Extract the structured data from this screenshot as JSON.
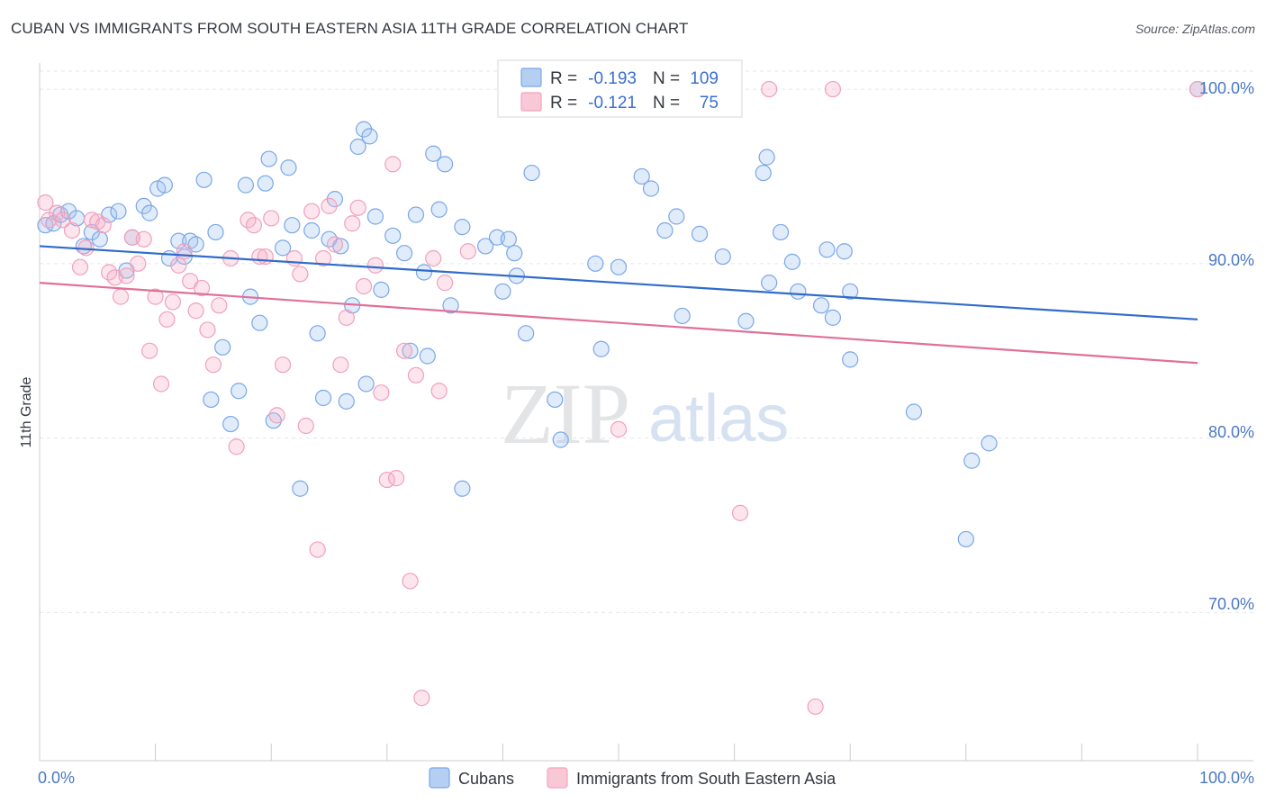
{
  "title": "CUBAN VS IMMIGRANTS FROM SOUTH EASTERN ASIA 11TH GRADE CORRELATION CHART",
  "source": "Source: ZipAtlas.com",
  "watermark": {
    "zip": "ZIP",
    "atlas": "atlas"
  },
  "legend": {
    "r_label": "R =",
    "n_label": "N =",
    "rows": [
      {
        "r": "-0.193",
        "n": "109"
      },
      {
        "r": "-0.121",
        "n": "75"
      }
    ]
  },
  "chart_data": {
    "type": "scatter",
    "ylabel": "11th Grade",
    "x_tick_labels": [
      "0.0%",
      "100.0%"
    ],
    "y_tick_labels": [
      "100.0%",
      "90.0%",
      "80.0%",
      "70.0%"
    ],
    "xlim": [
      0,
      100
    ],
    "ylim": [
      61.5,
      101.5
    ],
    "colors": {
      "Cubans": "#7aa6e8",
      "Immigrants from South Eastern Asia": "#f3a3bd",
      "blue_line": "#2f6cc9",
      "pink_line": "#e0709a"
    },
    "series": [
      {
        "name": "Cubans",
        "trend": {
          "x": [
            0,
            100
          ],
          "y": [
            91.0,
            86.8
          ]
        },
        "points": [
          [
            0.5,
            92.2
          ],
          [
            1.2,
            92.3
          ],
          [
            1.8,
            92.8
          ],
          [
            2.5,
            93.0
          ],
          [
            3.2,
            92.6
          ],
          [
            3.8,
            91.0
          ],
          [
            4.5,
            91.8
          ],
          [
            5.2,
            91.4
          ],
          [
            6.0,
            92.8
          ],
          [
            6.8,
            93.0
          ],
          [
            7.5,
            89.6
          ],
          [
            8.0,
            91.5
          ],
          [
            9.0,
            93.3
          ],
          [
            9.5,
            92.9
          ],
          [
            10.2,
            94.3
          ],
          [
            10.8,
            94.5
          ],
          [
            11.2,
            90.3
          ],
          [
            12.0,
            91.3
          ],
          [
            12.5,
            90.4
          ],
          [
            13.0,
            91.3
          ],
          [
            13.5,
            91.1
          ],
          [
            14.2,
            94.8
          ],
          [
            15.2,
            91.8
          ],
          [
            14.8,
            82.2
          ],
          [
            15.8,
            85.2
          ],
          [
            16.5,
            80.8
          ],
          [
            17.2,
            82.7
          ],
          [
            17.8,
            94.5
          ],
          [
            18.2,
            88.1
          ],
          [
            19.0,
            86.6
          ],
          [
            19.5,
            94.6
          ],
          [
            19.8,
            96.0
          ],
          [
            20.2,
            81.0
          ],
          [
            21.0,
            90.9
          ],
          [
            21.5,
            95.5
          ],
          [
            21.8,
            92.2
          ],
          [
            22.5,
            77.1
          ],
          [
            23.5,
            91.9
          ],
          [
            24.0,
            86.0
          ],
          [
            24.5,
            82.3
          ],
          [
            25.0,
            91.4
          ],
          [
            25.5,
            93.7
          ],
          [
            26.0,
            91.0
          ],
          [
            26.5,
            82.1
          ],
          [
            27.0,
            87.6
          ],
          [
            27.5,
            96.7
          ],
          [
            28.0,
            97.7
          ],
          [
            28.5,
            97.3
          ],
          [
            28.2,
            83.1
          ],
          [
            29.0,
            92.7
          ],
          [
            29.5,
            88.5
          ],
          [
            30.5,
            91.6
          ],
          [
            31.5,
            90.6
          ],
          [
            32.0,
            85.0
          ],
          [
            32.5,
            92.8
          ],
          [
            33.2,
            89.5
          ],
          [
            33.5,
            84.7
          ],
          [
            34.0,
            96.3
          ],
          [
            34.5,
            93.1
          ],
          [
            35.0,
            95.7
          ],
          [
            35.5,
            87.6
          ],
          [
            36.5,
            92.1
          ],
          [
            36.5,
            77.1
          ],
          [
            38.5,
            91.0
          ],
          [
            39.5,
            91.5
          ],
          [
            40.0,
            88.4
          ],
          [
            40.5,
            91.4
          ],
          [
            41.0,
            90.6
          ],
          [
            41.2,
            89.3
          ],
          [
            42.0,
            86.0
          ],
          [
            42.5,
            95.2
          ],
          [
            44.5,
            82.2
          ],
          [
            45.0,
            79.9
          ],
          [
            48.0,
            90.0
          ],
          [
            48.5,
            85.1
          ],
          [
            50.0,
            89.8
          ],
          [
            52.0,
            95.0
          ],
          [
            52.8,
            94.3
          ],
          [
            54.0,
            91.9
          ],
          [
            55.0,
            92.7
          ],
          [
            55.5,
            87.0
          ],
          [
            57.0,
            91.7
          ],
          [
            59.0,
            90.4
          ],
          [
            61.0,
            86.7
          ],
          [
            62.5,
            95.2
          ],
          [
            62.8,
            96.1
          ],
          [
            63.0,
            88.9
          ],
          [
            64.0,
            91.8
          ],
          [
            65.0,
            90.1
          ],
          [
            65.5,
            88.4
          ],
          [
            67.5,
            87.6
          ],
          [
            68.0,
            90.8
          ],
          [
            68.5,
            86.9
          ],
          [
            69.5,
            90.7
          ],
          [
            70.0,
            88.4
          ],
          [
            70.0,
            84.5
          ],
          [
            75.5,
            81.5
          ],
          [
            80.5,
            78.7
          ],
          [
            80.0,
            74.2
          ],
          [
            82.0,
            79.7
          ],
          [
            100.0,
            100.0
          ]
        ]
      },
      {
        "name": "Immigrants from South Eastern Asia",
        "trend": {
          "x": [
            0,
            100
          ],
          "y": [
            88.9,
            84.3
          ]
        },
        "points": [
          [
            0.5,
            93.5
          ],
          [
            0.8,
            92.5
          ],
          [
            1.5,
            92.9
          ],
          [
            2.0,
            92.5
          ],
          [
            2.8,
            91.9
          ],
          [
            3.5,
            89.8
          ],
          [
            4.0,
            90.9
          ],
          [
            4.5,
            92.5
          ],
          [
            5.0,
            92.4
          ],
          [
            5.5,
            92.2
          ],
          [
            6.0,
            89.5
          ],
          [
            6.5,
            89.2
          ],
          [
            7.0,
            88.1
          ],
          [
            7.5,
            89.3
          ],
          [
            8.0,
            91.5
          ],
          [
            8.5,
            90.0
          ],
          [
            9.0,
            91.4
          ],
          [
            9.5,
            85.0
          ],
          [
            10.0,
            88.1
          ],
          [
            10.5,
            83.1
          ],
          [
            11.0,
            86.8
          ],
          [
            11.5,
            87.8
          ],
          [
            12.0,
            89.9
          ],
          [
            12.5,
            90.7
          ],
          [
            13.0,
            89.0
          ],
          [
            13.5,
            87.3
          ],
          [
            14.0,
            88.6
          ],
          [
            14.5,
            86.2
          ],
          [
            15.0,
            84.2
          ],
          [
            15.5,
            87.6
          ],
          [
            16.5,
            90.3
          ],
          [
            17.0,
            79.5
          ],
          [
            18.0,
            92.5
          ],
          [
            18.5,
            92.2
          ],
          [
            19.0,
            90.4
          ],
          [
            19.5,
            90.4
          ],
          [
            20.0,
            92.6
          ],
          [
            20.5,
            81.3
          ],
          [
            21.0,
            84.2
          ],
          [
            22.0,
            90.3
          ],
          [
            22.5,
            89.4
          ],
          [
            23.0,
            80.7
          ],
          [
            23.5,
            93.0
          ],
          [
            24.0,
            73.6
          ],
          [
            24.5,
            90.3
          ],
          [
            25.0,
            93.3
          ],
          [
            25.5,
            91.1
          ],
          [
            26.0,
            84.2
          ],
          [
            26.5,
            86.9
          ],
          [
            27.0,
            92.3
          ],
          [
            27.5,
            93.2
          ],
          [
            28.0,
            88.7
          ],
          [
            29.0,
            89.9
          ],
          [
            29.5,
            82.6
          ],
          [
            30.0,
            77.6
          ],
          [
            30.5,
            95.7
          ],
          [
            30.8,
            77.7
          ],
          [
            31.5,
            85.0
          ],
          [
            32.0,
            71.8
          ],
          [
            32.5,
            83.6
          ],
          [
            33.0,
            65.1
          ],
          [
            34.0,
            90.3
          ],
          [
            34.5,
            82.7
          ],
          [
            35.0,
            88.9
          ],
          [
            37.0,
            90.7
          ],
          [
            50.0,
            80.5
          ],
          [
            60.5,
            75.7
          ],
          [
            63.0,
            100.0
          ],
          [
            67.0,
            64.6
          ],
          [
            68.5,
            100.0
          ],
          [
            100.0,
            100.0
          ]
        ]
      }
    ]
  },
  "bottom_legend": [
    "Cubans",
    "Immigrants from South Eastern Asia"
  ]
}
